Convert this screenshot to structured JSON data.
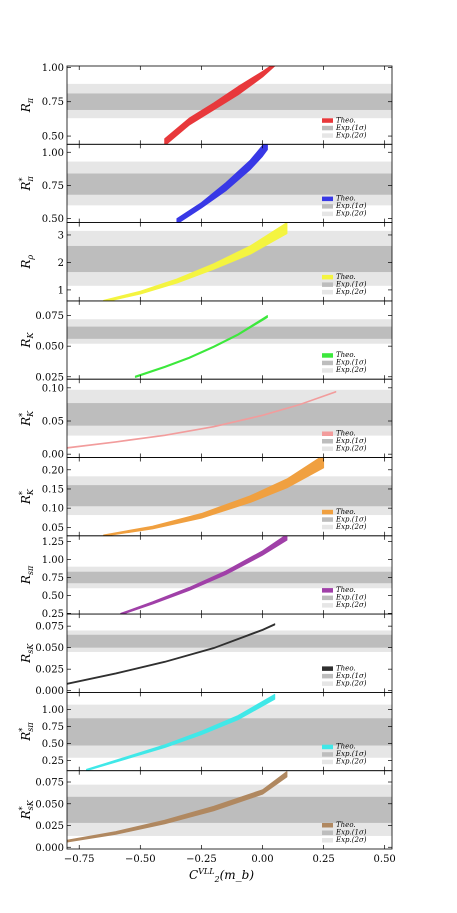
{
  "chart_data": {
    "type": "line",
    "xlabel": "C_2^{VLL}(m_b)",
    "xlabel_main": "C",
    "xlabel_sub": "2",
    "xlabel_sup": "VLL",
    "xlabel_tail": "(m_b)",
    "xlim": [
      -0.8,
      0.53
    ],
    "xticks": [
      -0.75,
      -0.5,
      -0.25,
      0.0,
      0.25,
      0.5
    ],
    "xtick_labels": [
      "−0.75",
      "−0.50",
      "−0.25",
      "0.00",
      "0.25",
      "0.50"
    ],
    "legend": {
      "theo": "Theo.",
      "exp1": "Exp.(1σ)",
      "exp2": "Exp.(2σ)",
      "placement": "bottom-right"
    },
    "panels": [
      {
        "ylabel": "R_π",
        "ylabel_main": "R",
        "ylabel_sub": "π",
        "ylabel_sup": "",
        "ylim": [
          0.44,
          1.01
        ],
        "yticks": [
          0.5,
          0.75,
          1.0
        ],
        "ytick_labels": [
          "0.50",
          "0.75",
          "1.00"
        ],
        "exp1": [
          0.69,
          0.81
        ],
        "exp2": [
          0.63,
          0.88
        ],
        "color": "#e8383b",
        "x": [
          -0.4,
          -0.3,
          -0.2,
          -0.1,
          0.0,
          0.05
        ],
        "y_low": [
          0.43,
          0.58,
          0.69,
          0.8,
          0.93,
          1.01
        ],
        "y_high": [
          0.48,
          0.63,
          0.74,
          0.86,
          0.97,
          1.03
        ]
      },
      {
        "ylabel": "R*_π",
        "ylabel_main": "R",
        "ylabel_sub": "π",
        "ylabel_sup": "*",
        "ylim": [
          0.47,
          1.06
        ],
        "yticks": [
          0.5,
          0.75,
          1.0
        ],
        "ytick_labels": [
          "0.50",
          "0.75",
          "1.00"
        ],
        "exp1": [
          0.68,
          0.84
        ],
        "exp2": [
          0.6,
          0.93
        ],
        "color": "#3838e6",
        "x": [
          -0.35,
          -0.25,
          -0.15,
          -0.05,
          0.0,
          0.02
        ],
        "y_low": [
          0.46,
          0.58,
          0.71,
          0.87,
          0.97,
          1.02
        ],
        "y_high": [
          0.5,
          0.62,
          0.77,
          0.94,
          1.05,
          1.08
        ]
      },
      {
        "ylabel": "R_ρ",
        "ylabel_main": "R",
        "ylabel_sub": "ρ",
        "ylabel_sup": "",
        "ylim": [
          0.6,
          3.45
        ],
        "yticks": [
          1,
          2,
          3
        ],
        "ytick_labels": [
          "1",
          "2",
          "3"
        ],
        "exp1": [
          1.65,
          2.6
        ],
        "exp2": [
          1.15,
          3.15
        ],
        "color": "#f4f440",
        "x": [
          -0.65,
          -0.5,
          -0.35,
          -0.2,
          -0.05,
          0.1
        ],
        "y_low": [
          0.55,
          0.85,
          1.25,
          1.75,
          2.3,
          3.05
        ],
        "y_high": [
          0.62,
          0.95,
          1.4,
          1.95,
          2.6,
          3.45
        ]
      },
      {
        "ylabel": "R_K",
        "ylabel_main": "R",
        "ylabel_sub": "K",
        "ylabel_sup": "",
        "ylim": [
          0.023,
          0.087
        ],
        "yticks": [
          0.025,
          0.05,
          0.075
        ],
        "ytick_labels": [
          "0.025",
          "0.050",
          "0.075"
        ],
        "exp1": [
          0.056,
          0.066
        ],
        "exp2": [
          0.052,
          0.072
        ],
        "color": "#3ce83c",
        "x": [
          -0.52,
          -0.4,
          -0.3,
          -0.2,
          -0.1,
          0.0,
          0.02
        ],
        "y_low": [
          0.0245,
          0.0325,
          0.04,
          0.049,
          0.059,
          0.071,
          0.0735
        ],
        "y_high": [
          0.0255,
          0.0335,
          0.041,
          0.05,
          0.06,
          0.0725,
          0.075
        ]
      },
      {
        "ylabel": "R*_K",
        "ylabel_main": "R",
        "ylabel_sub": "K",
        "ylabel_sup": "*",
        "ylim": [
          -0.005,
          0.113
        ],
        "yticks": [
          0.0,
          0.05,
          0.1
        ],
        "ytick_labels": [
          "0.00",
          "0.05",
          "0.10"
        ],
        "exp1": [
          0.043,
          0.077
        ],
        "exp2": [
          0.028,
          0.097
        ],
        "color": "#f29c9c",
        "x": [
          -0.8,
          -0.6,
          -0.4,
          -0.2,
          0.0,
          0.15,
          0.3
        ],
        "y_low": [
          0.009,
          0.018,
          0.028,
          0.041,
          0.058,
          0.074,
          0.0935
        ],
        "y_high": [
          0.01,
          0.019,
          0.029,
          0.042,
          0.059,
          0.075,
          0.0945
        ]
      },
      {
        "ylabel": "R_K*",
        "ylabel_main": "R",
        "ylabel_sub": "K",
        "ylabel_sup": "*",
        "ylim": [
          0.028,
          0.232
        ],
        "yticks": [
          0.05,
          0.1,
          0.15,
          0.2
        ],
        "ytick_labels": [
          "0.05",
          "0.10",
          "0.15",
          "0.20"
        ],
        "exp1": [
          0.105,
          0.16
        ],
        "exp2": [
          0.082,
          0.183
        ],
        "color": "#f0a040",
        "x": [
          -0.65,
          -0.45,
          -0.25,
          -0.05,
          0.1,
          0.25
        ],
        "y_low": [
          0.027,
          0.046,
          0.074,
          0.115,
          0.153,
          0.205
        ],
        "y_high": [
          0.03,
          0.053,
          0.086,
          0.132,
          0.176,
          0.238
        ]
      },
      {
        "ylabel": "R_sπ",
        "ylabel_main": "R",
        "ylabel_sub": "sπ",
        "ylabel_sup": "",
        "ylim": [
          0.24,
          1.33
        ],
        "yticks": [
          0.25,
          0.5,
          0.75,
          1.0,
          1.25
        ],
        "ytick_labels": [
          "0.25",
          "0.50",
          "0.75",
          "1.00",
          "1.25"
        ],
        "exp1": [
          0.67,
          0.83
        ],
        "exp2": [
          0.6,
          0.9
        ],
        "color": "#a040a8",
        "x": [
          -0.58,
          -0.45,
          -0.3,
          -0.15,
          0.0,
          0.1
        ],
        "y_low": [
          0.23,
          0.38,
          0.57,
          0.79,
          1.06,
          1.27
        ],
        "y_high": [
          0.25,
          0.41,
          0.61,
          0.84,
          1.12,
          1.35
        ]
      },
      {
        "ylabel": "R_sK",
        "ylabel_main": "R",
        "ylabel_sub": "sK",
        "ylabel_sup": "",
        "ylim": [
          -0.002,
          0.089
        ],
        "yticks": [
          0.0,
          0.025,
          0.05,
          0.075
        ],
        "ytick_labels": [
          "0.000",
          "0.025",
          "0.050",
          "0.075"
        ],
        "exp1": [
          0.05,
          0.065
        ],
        "exp2": [
          0.045,
          0.07
        ],
        "color": "#303030",
        "x": [
          -0.8,
          -0.6,
          -0.4,
          -0.2,
          0.0,
          0.05
        ],
        "y_low": [
          0.0075,
          0.0195,
          0.033,
          0.049,
          0.07,
          0.0765
        ],
        "y_high": [
          0.0085,
          0.0205,
          0.034,
          0.05,
          0.0712,
          0.0777
        ]
      },
      {
        "ylabel": "R*_sπ",
        "ylabel_main": "R",
        "ylabel_sub": "sπ",
        "ylabel_sup": "*",
        "ylim": [
          0.1,
          1.25
        ],
        "yticks": [
          0.25,
          0.5,
          0.75,
          1.0
        ],
        "ytick_labels": [
          "0.25",
          "0.50",
          "0.75",
          "1.00"
        ],
        "exp1": [
          0.47,
          0.87
        ],
        "exp2": [
          0.29,
          1.07
        ],
        "color": "#40e8e8",
        "x": [
          -0.72,
          -0.55,
          -0.4,
          -0.25,
          -0.1,
          0.05
        ],
        "y_low": [
          0.1,
          0.28,
          0.44,
          0.63,
          0.85,
          1.15
        ],
        "y_high": [
          0.12,
          0.31,
          0.48,
          0.68,
          0.91,
          1.22
        ]
      },
      {
        "ylabel": "R*_sK",
        "ylabel_main": "R",
        "ylabel_sub": "sK",
        "ylabel_sup": "*",
        "ylim": [
          -0.002,
          0.088
        ],
        "yticks": [
          0.0,
          0.025,
          0.05,
          0.075
        ],
        "ytick_labels": [
          "0.000",
          "0.025",
          "0.050",
          "0.075"
        ],
        "exp1": [
          0.028,
          0.058
        ],
        "exp2": [
          0.013,
          0.072
        ],
        "color": "#b08860",
        "x": [
          -0.8,
          -0.6,
          -0.4,
          -0.2,
          0.0,
          0.1
        ],
        "y_low": [
          0.006,
          0.015,
          0.027,
          0.042,
          0.061,
          0.081
        ],
        "y_high": [
          0.008,
          0.018,
          0.031,
          0.047,
          0.066,
          0.087
        ]
      }
    ]
  }
}
